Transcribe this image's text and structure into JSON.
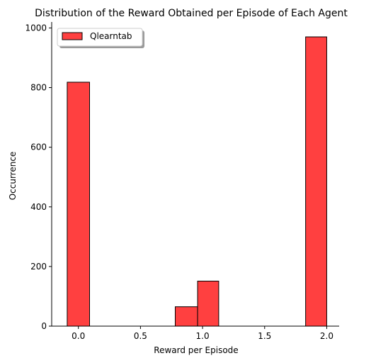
{
  "chart_data": {
    "type": "bar",
    "title": "Distribution of the Reward Obtained per Episode of Each Agent",
    "xlabel": "Reward per Episode",
    "ylabel": "Occurrence",
    "xlim": [
      -0.215,
      2.1
    ],
    "ylim": [
      0,
      1020
    ],
    "xticks": [
      0.0,
      0.5,
      1.0,
      1.5,
      2.0
    ],
    "xtick_labels": [
      "0.0",
      "0.5",
      "1.0",
      "1.5",
      "2.0"
    ],
    "yticks": [
      0,
      200,
      400,
      600,
      800,
      1000
    ],
    "ytick_labels": [
      "0",
      "200",
      "400",
      "600",
      "800",
      "1000"
    ],
    "grid": false,
    "legend_position": "top-left",
    "series": [
      {
        "name": "Qlearntab",
        "color": "#ff4040",
        "edgecolor": "#000000",
        "bins": [
          {
            "x0": -0.09,
            "x1": 0.09,
            "value": 818
          },
          {
            "x0": 0.78,
            "x1": 0.96,
            "value": 65
          },
          {
            "x0": 0.96,
            "x1": 1.13,
            "value": 151
          },
          {
            "x0": 1.83,
            "x1": 2.0,
            "value": 970
          }
        ]
      }
    ]
  }
}
